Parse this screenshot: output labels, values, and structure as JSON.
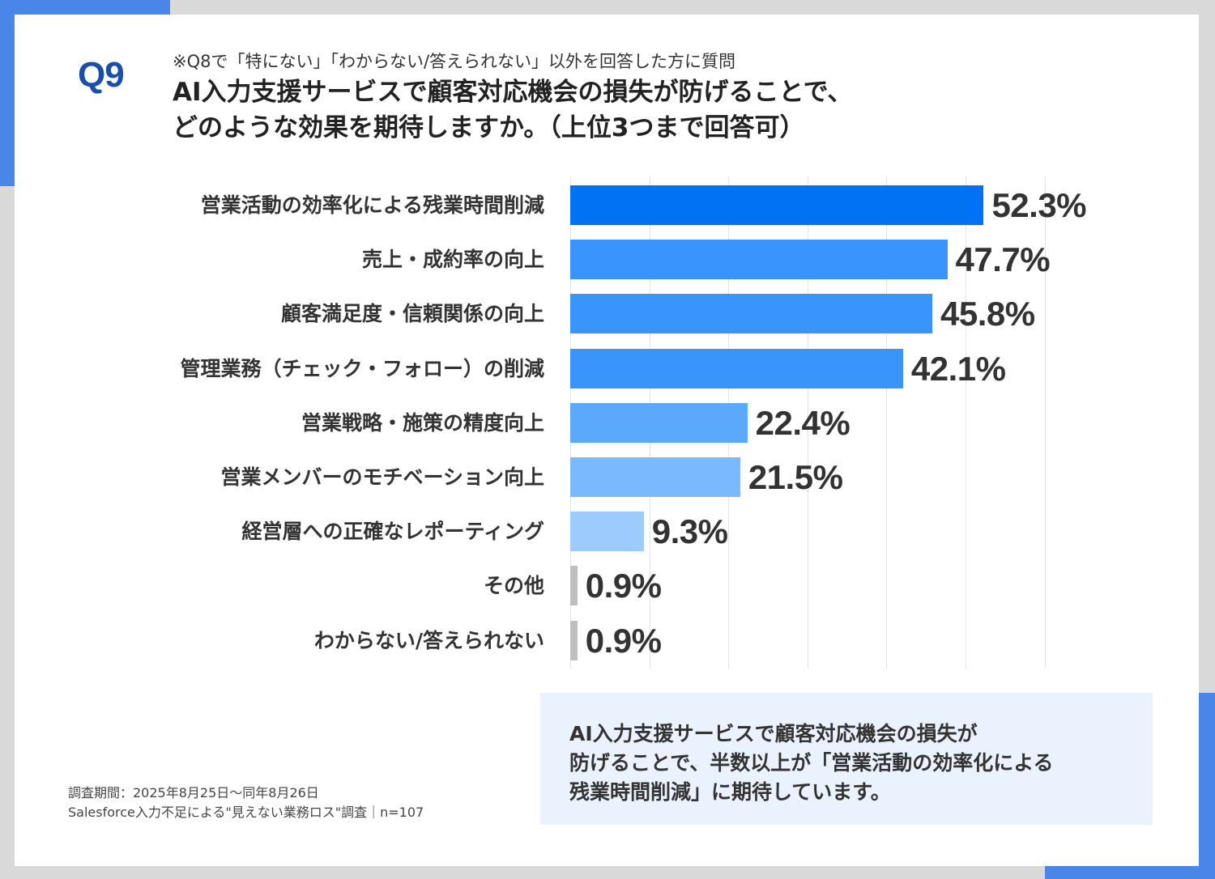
{
  "header": {
    "question_number": "Q9",
    "note": "※Q8で「特にない」「わからない/答えられない」以外を回答した方に質問",
    "title_line1": "AI入力支援サービスで顧客対応機会の損失が防げることで、",
    "title_line2": "どのような効果を期待しますか。（上位3つまで回答可）"
  },
  "chart_data": {
    "type": "bar",
    "orientation": "horizontal",
    "categories": [
      "営業活動の効率化による残業時間削減",
      "売上・成約率の向上",
      "顧客満足度・信頼関係の向上",
      "管理業務（チェック・フォロー）の削減",
      "営業戦略・施策の精度向上",
      "営業メンバーのモチベーション向上",
      "経営層への正確なレポーティング",
      "その他",
      "わからない/答えられない"
    ],
    "values": [
      52.3,
      47.7,
      45.8,
      42.1,
      22.4,
      21.5,
      9.3,
      0.9,
      0.9
    ],
    "value_labels": [
      "52.3%",
      "47.7%",
      "45.8%",
      "42.1%",
      "22.4%",
      "21.5%",
      "9.3%",
      "0.9%",
      "0.9%"
    ],
    "bar_colors": [
      "#0073f5",
      "#3995fb",
      "#3995fb",
      "#3995fb",
      "#5aa9fd",
      "#7ab9fd",
      "#9dcbfd",
      "#bfbfbf",
      "#bfbfbf"
    ],
    "xlim": [
      0,
      60
    ],
    "grid": true
  },
  "summary": {
    "line1": "AI入力支援サービスで顧客対応機会の損失が",
    "line2": "防げることで、半数以上が「営業活動の効率化による",
    "line3": "残業時間削減」に期待しています。"
  },
  "source": {
    "period": "調査期間：2025年8月25日～同年8月26日",
    "survey": "Salesforce入力不足による\"見えない業務ロス\"調査｜n=107"
  }
}
